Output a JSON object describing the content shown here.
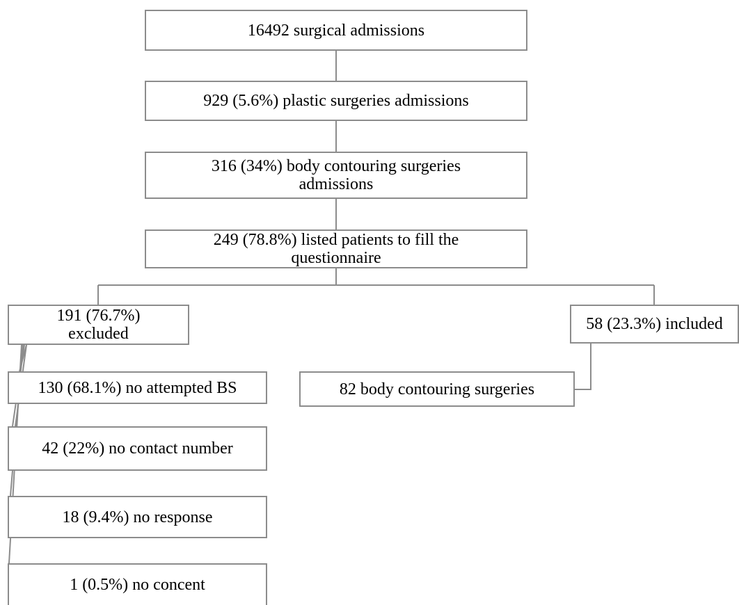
{
  "flowchart": {
    "admissions": "16492 surgical admissions",
    "plastic": "929 (5.6%) plastic surgeries admissions",
    "body_contouring": [
      "316 (34%) body contouring surgeries",
      "admissions"
    ],
    "listed": [
      "249 (78.8%) listed patients to fill the",
      "questionnaire"
    ],
    "excluded": [
      "191 (76.7%)",
      "excluded"
    ],
    "included": "58 (23.3%) included",
    "no_attempted_bs": "130 (68.1%) no attempted BS",
    "surgeries": "82 body contouring surgeries",
    "no_contact": "42 (22%) no contact number",
    "no_response": "18 (9.4%) no response",
    "no_consent": "1 (0.5%) no concent"
  },
  "colors": {
    "line": "#8c8c8c",
    "box_border": "#8c8c8c",
    "text": "#000000",
    "background": "#ffffff"
  }
}
